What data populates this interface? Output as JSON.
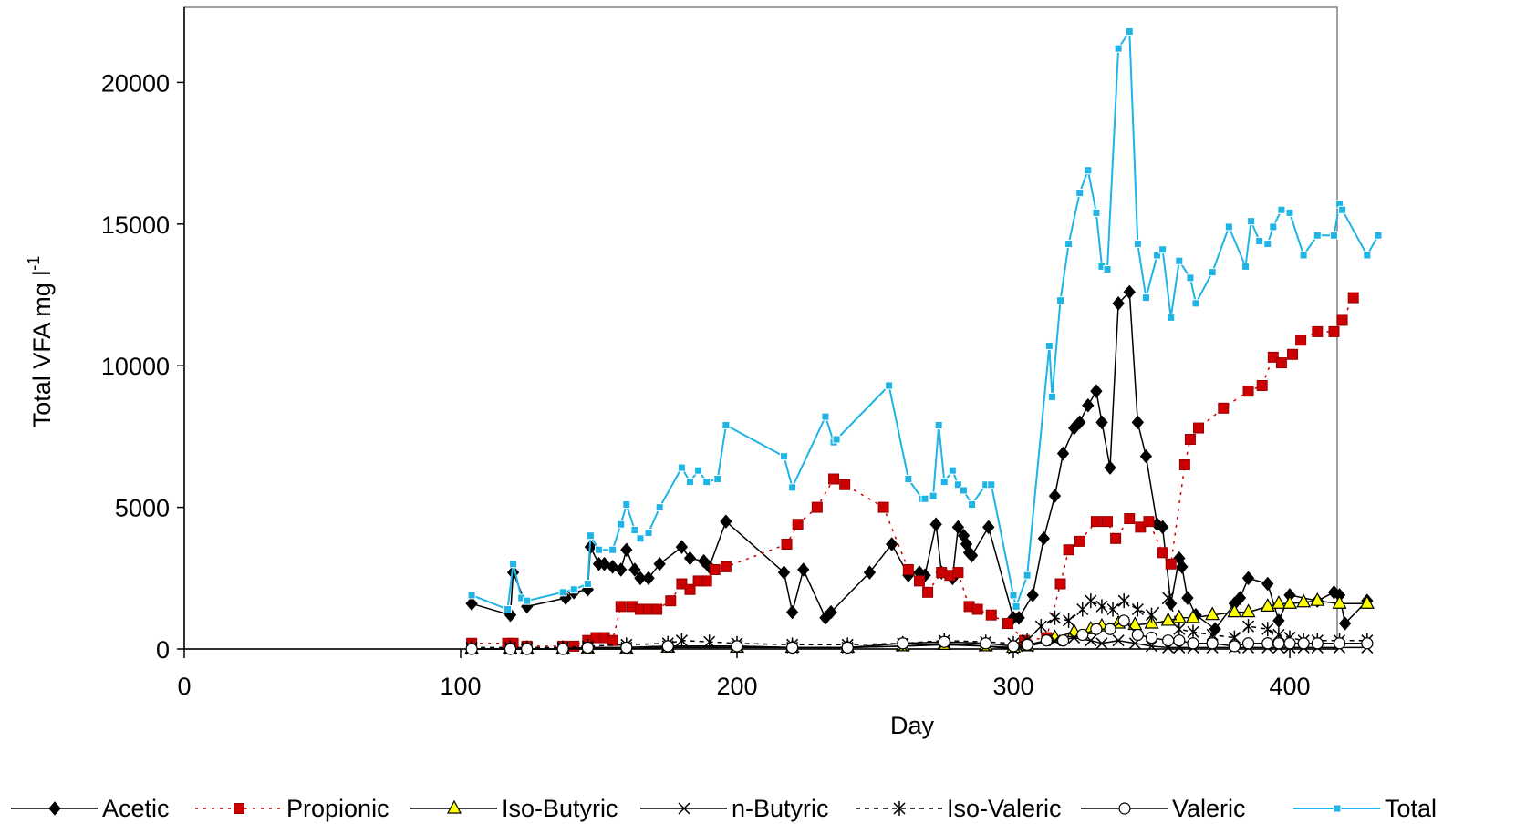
{
  "chart_data": {
    "type": "line",
    "title": "",
    "xlabel": "Day",
    "ylabel": "Total VFA mg l",
    "ylabel_superscript": "-1",
    "xlim": [
      0,
      432
    ],
    "ylim": [
      0,
      22500
    ],
    "x_ticks": [
      0,
      100,
      200,
      300,
      400
    ],
    "y_ticks": [
      0,
      5000,
      10000,
      15000,
      20000
    ],
    "grid": false,
    "legend_position": "bottom",
    "series": [
      {
        "name": "Acetic",
        "color": "#000000",
        "marker": "diamond",
        "dash": "solid",
        "x": [
          104,
          118,
          119,
          124,
          138,
          141,
          146,
          147,
          150,
          152,
          155,
          158,
          160,
          163,
          165,
          168,
          172,
          180,
          183,
          188,
          190,
          196,
          217,
          220,
          224,
          232,
          234,
          248,
          256,
          262,
          266,
          268,
          272,
          274,
          278,
          280,
          282,
          283,
          284,
          285,
          291,
          300,
          302,
          307,
          311,
          315,
          318,
          322,
          324,
          327,
          330,
          332,
          335,
          338,
          342,
          345,
          348,
          352,
          354,
          357,
          360,
          361,
          363,
          366,
          373,
          380,
          382,
          385,
          392,
          396,
          400,
          410,
          416,
          418,
          420,
          428
        ],
        "y": [
          1600,
          1200,
          2700,
          1500,
          1800,
          2000,
          2100,
          3600,
          3000,
          3000,
          2900,
          2800,
          3500,
          2800,
          2500,
          2500,
          3000,
          3600,
          3200,
          3100,
          2900,
          4500,
          2700,
          1300,
          2800,
          1100,
          1300,
          2700,
          3700,
          2600,
          2700,
          2600,
          4400,
          2700,
          2500,
          4300,
          4000,
          3700,
          3400,
          3300,
          4300,
          1100,
          1100,
          1900,
          3900,
          5400,
          6900,
          7800,
          8000,
          8600,
          9100,
          8000,
          6400,
          12200,
          12600,
          8000,
          6800,
          4400,
          4300,
          1600,
          3200,
          2900,
          1800,
          1200,
          700,
          1600,
          1800,
          2500,
          2300,
          1000,
          1900,
          1700,
          2000,
          1900,
          900,
          1700
        ]
      },
      {
        "name": "Propionic",
        "color": "#cc0000",
        "marker": "square",
        "dash": "dotted",
        "x": [
          104,
          117,
          119,
          124,
          137,
          141,
          146,
          149,
          152,
          155,
          158,
          162,
          165,
          168,
          171,
          176,
          180,
          183,
          186,
          189,
          192,
          196,
          218,
          222,
          229,
          235,
          239,
          253,
          262,
          266,
          269,
          274,
          277,
          280,
          284,
          287,
          292,
          298,
          304,
          312,
          317,
          320,
          324,
          330,
          334,
          337,
          342,
          346,
          349,
          354,
          357,
          362,
          364,
          367,
          376,
          385,
          390,
          394,
          397,
          401,
          404,
          410,
          416,
          419,
          423
        ],
        "y": [
          200,
          200,
          200,
          100,
          100,
          100,
          300,
          400,
          400,
          300,
          1500,
          1500,
          1400,
          1400,
          1400,
          1700,
          2300,
          2100,
          2400,
          2400,
          2800,
          2900,
          3700,
          4400,
          5000,
          6000,
          5800,
          5000,
          2800,
          2400,
          2000,
          2700,
          2600,
          2700,
          1500,
          1400,
          1200,
          900,
          300,
          400,
          2300,
          3500,
          3800,
          4500,
          4500,
          3900,
          4600,
          4300,
          4500,
          3400,
          3000,
          6500,
          7400,
          7800,
          8500,
          9100,
          9300,
          10300,
          10100,
          10400,
          10900,
          11200,
          11200,
          11600,
          12400
        ]
      },
      {
        "name": "Iso-Butyric",
        "color": "#000000",
        "marker": "triangle",
        "fill": "#ffff00",
        "dash": "solid",
        "x": [
          104,
          118,
          124,
          137,
          146,
          160,
          175,
          200,
          220,
          240,
          260,
          275,
          290,
          300,
          305,
          315,
          322,
          328,
          332,
          338,
          344,
          350,
          356,
          360,
          365,
          372,
          380,
          385,
          392,
          396,
          400,
          405,
          410,
          418,
          428
        ],
        "y": [
          0,
          0,
          0,
          0,
          0,
          0,
          50,
          50,
          50,
          50,
          100,
          150,
          100,
          50,
          100,
          400,
          600,
          700,
          800,
          900,
          850,
          900,
          1000,
          1100,
          1100,
          1200,
          1300,
          1300,
          1500,
          1600,
          1600,
          1650,
          1700,
          1600,
          1600
        ]
      },
      {
        "name": "n-Butyric",
        "color": "#000000",
        "marker": "x",
        "dash": "solid",
        "x": [
          104,
          118,
          124,
          137,
          146,
          160,
          175,
          200,
          220,
          240,
          260,
          275,
          290,
          300,
          305,
          315,
          322,
          328,
          332,
          338,
          344,
          350,
          356,
          360,
          365,
          372,
          380,
          385,
          392,
          396,
          400,
          405,
          410,
          418,
          428
        ],
        "y": [
          0,
          0,
          0,
          0,
          50,
          50,
          100,
          100,
          50,
          50,
          100,
          200,
          100,
          0,
          100,
          300,
          400,
          300,
          200,
          300,
          200,
          100,
          50,
          50,
          50,
          50,
          50,
          50,
          50,
          50,
          50,
          50,
          50,
          50,
          50
        ]
      },
      {
        "name": "Iso-Valeric",
        "color": "#000000",
        "marker": "star",
        "dash": "dashed",
        "x": [
          104,
          118,
          124,
          137,
          146,
          160,
          175,
          180,
          190,
          200,
          220,
          240,
          260,
          275,
          290,
          300,
          305,
          310,
          315,
          320,
          325,
          328,
          332,
          336,
          340,
          345,
          350,
          356,
          360,
          365,
          372,
          380,
          385,
          392,
          396,
          400,
          405,
          410,
          418,
          428
        ],
        "y": [
          50,
          50,
          50,
          50,
          100,
          150,
          200,
          300,
          250,
          200,
          150,
          150,
          200,
          300,
          250,
          200,
          300,
          800,
          1100,
          1000,
          1400,
          1700,
          1500,
          1400,
          1700,
          1400,
          1200,
          1800,
          700,
          600,
          500,
          400,
          800,
          700,
          500,
          400,
          300,
          300,
          300,
          300
        ]
      },
      {
        "name": "Valeric",
        "color": "#000000",
        "marker": "circle",
        "dash": "solid",
        "x": [
          104,
          118,
          124,
          137,
          146,
          160,
          175,
          200,
          220,
          240,
          260,
          275,
          290,
          300,
          305,
          312,
          318,
          325,
          330,
          335,
          340,
          345,
          350,
          356,
          360,
          365,
          372,
          380,
          385,
          392,
          396,
          400,
          405,
          410,
          418,
          428
        ],
        "y": [
          0,
          0,
          0,
          0,
          50,
          50,
          100,
          100,
          50,
          50,
          200,
          250,
          200,
          100,
          150,
          300,
          300,
          500,
          700,
          700,
          1000,
          500,
          400,
          300,
          300,
          200,
          200,
          100,
          200,
          200,
          200,
          200,
          200,
          200,
          200,
          200
        ]
      },
      {
        "name": "Total",
        "color": "#1eb4e6",
        "marker": "square",
        "dash": "solid",
        "x": [
          104,
          117,
          119,
          122,
          124,
          137,
          141,
          146,
          147,
          150,
          155,
          158,
          160,
          163,
          165,
          168,
          172,
          180,
          183,
          186,
          189,
          193,
          196,
          217,
          220,
          232,
          235,
          236,
          255,
          262,
          267,
          268,
          271,
          273,
          275,
          278,
          280,
          282,
          285,
          290,
          292,
          300,
          301,
          305,
          313,
          314,
          317,
          320,
          324,
          327,
          330,
          332,
          334,
          338,
          342,
          345,
          348,
          352,
          354,
          357,
          360,
          364,
          366,
          372,
          378,
          384,
          386,
          389,
          392,
          394,
          397,
          400,
          405,
          410,
          416,
          418,
          419,
          428,
          432
        ],
        "y": [
          1900,
          1400,
          3000,
          1800,
          1700,
          2000,
          2100,
          2300,
          4000,
          3500,
          3500,
          4400,
          5100,
          4200,
          3900,
          4100,
          5000,
          6400,
          5900,
          6300,
          5900,
          6000,
          7900,
          6800,
          5700,
          8200,
          7300,
          7400,
          9300,
          6000,
          5300,
          5300,
          5400,
          7900,
          5900,
          6300,
          5800,
          5600,
          5100,
          5800,
          5800,
          1900,
          1500,
          2600,
          10700,
          8900,
          12300,
          14300,
          16100,
          16900,
          15400,
          13500,
          13400,
          21200,
          21800,
          14300,
          12400,
          13900,
          14100,
          11700,
          13700,
          13100,
          12200,
          13300,
          14900,
          13500,
          15100,
          14400,
          14300,
          14900,
          15500,
          15400,
          13900,
          14600,
          14600,
          15700,
          15500,
          13900,
          14600
        ]
      }
    ]
  }
}
